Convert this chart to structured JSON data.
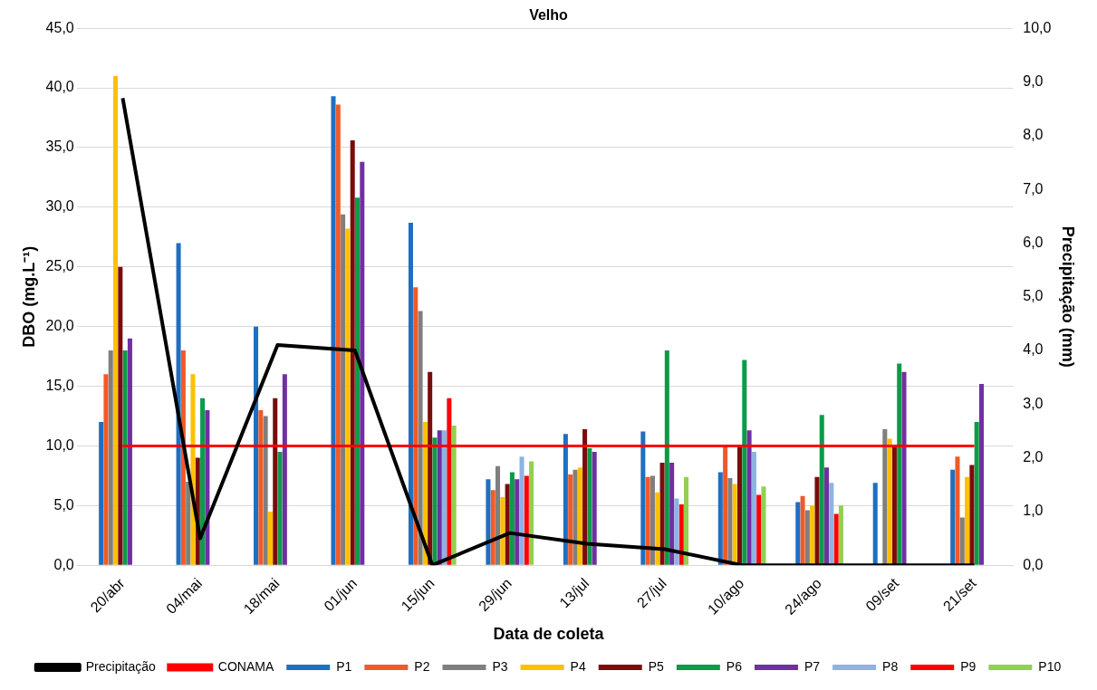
{
  "chart_data": {
    "type": "bar",
    "title": "Velho",
    "xlabel": "Data de coleta",
    "ylabel": "DBO (mg.L⁻¹)",
    "y2label": "Precipitação (mm)",
    "categories": [
      "20/abr",
      "04/mai",
      "18/mai",
      "01/jun",
      "15/jun",
      "29/jun",
      "13/jul",
      "27/jul",
      "10/ago",
      "24/ago",
      "09/set",
      "21/set"
    ],
    "series": [
      {
        "name": "P1",
        "color": "#1f6fc0",
        "values": [
          12,
          27,
          20,
          39.3,
          28.7,
          7.2,
          11,
          11.2,
          7.8,
          5.3,
          6.9,
          8
        ]
      },
      {
        "name": "P2",
        "color": "#f05a28",
        "values": [
          16,
          18,
          13,
          38.6,
          23.3,
          6.3,
          7.6,
          7.4,
          10,
          5.8,
          null,
          9.1
        ]
      },
      {
        "name": "P3",
        "color": "#7f7f7f",
        "values": [
          18,
          7,
          12.5,
          29.4,
          21.3,
          8.3,
          8,
          7.5,
          7.3,
          4.6,
          11.4,
          4
        ]
      },
      {
        "name": "P4",
        "color": "#ffc000",
        "values": [
          41,
          16,
          4.5,
          28.2,
          12,
          5.7,
          8.2,
          6.1,
          6.8,
          5,
          10.6,
          7.4
        ]
      },
      {
        "name": "P5",
        "color": "#7b0c0c",
        "values": [
          25,
          9,
          14,
          35.6,
          16.2,
          6.8,
          11.4,
          8.6,
          10,
          7.4,
          10,
          8.4
        ]
      },
      {
        "name": "P6",
        "color": "#0e9a48",
        "values": [
          18,
          14,
          9.5,
          30.8,
          10.7,
          7.8,
          9.8,
          18,
          17.2,
          12.6,
          16.9,
          12
        ]
      },
      {
        "name": "P7",
        "color": "#7030a0",
        "values": [
          19,
          13,
          16,
          33.8,
          11.3,
          7.2,
          9.5,
          8.6,
          11.3,
          8.2,
          16.2,
          15.2
        ]
      },
      {
        "name": "P8",
        "color": "#8db3e2",
        "values": [
          null,
          null,
          null,
          null,
          11.3,
          9.1,
          null,
          5.6,
          9.5,
          6.9,
          null,
          null
        ]
      },
      {
        "name": "P9",
        "color": "#ff0000",
        "values": [
          null,
          null,
          null,
          null,
          14,
          7.5,
          null,
          5.1,
          5.9,
          4.3,
          null,
          null
        ]
      },
      {
        "name": "P10",
        "color": "#92d050",
        "values": [
          null,
          null,
          null,
          null,
          11.7,
          8.7,
          null,
          7.4,
          6.6,
          5,
          null,
          null
        ]
      },
      {
        "name": "Precipitação",
        "type": "line",
        "axis": "y2",
        "color": "#000000",
        "values": [
          8.7,
          0.5,
          4.1,
          4.0,
          0,
          0.6,
          0.4,
          0.3,
          0,
          0,
          0,
          0
        ]
      }
    ],
    "ref_lines": [
      {
        "axis": "y",
        "value": 10,
        "label": "CONAMA",
        "color": "#ff0000"
      }
    ],
    "ylim": [
      0,
      45
    ],
    "yticks": [
      {
        "value": 0,
        "label": "0,0"
      },
      {
        "value": 5,
        "label": "5,0"
      },
      {
        "value": 10,
        "label": "10,0"
      },
      {
        "value": 15,
        "label": "15,0"
      },
      {
        "value": 20,
        "label": "20,0"
      },
      {
        "value": 25,
        "label": "25,0"
      },
      {
        "value": 30,
        "label": "30,0"
      },
      {
        "value": 35,
        "label": "35,0"
      },
      {
        "value": 40,
        "label": "40,0"
      },
      {
        "value": 45,
        "label": "45,0"
      }
    ],
    "y2lim": [
      0,
      10
    ],
    "y2ticks": [
      {
        "value": 0,
        "label": "0,0"
      },
      {
        "value": 1,
        "label": "1,0"
      },
      {
        "value": 2,
        "label": "2,0"
      },
      {
        "value": 3,
        "label": "3,0"
      },
      {
        "value": 4,
        "label": "4,0"
      },
      {
        "value": 5,
        "label": "5,0"
      },
      {
        "value": 6,
        "label": "6,0"
      },
      {
        "value": 7,
        "label": "7,0"
      },
      {
        "value": 8,
        "label": "8,0"
      },
      {
        "value": 9,
        "label": "9,0"
      },
      {
        "value": 10,
        "label": "10,0"
      }
    ],
    "grid": "y",
    "legend": "bottom"
  }
}
